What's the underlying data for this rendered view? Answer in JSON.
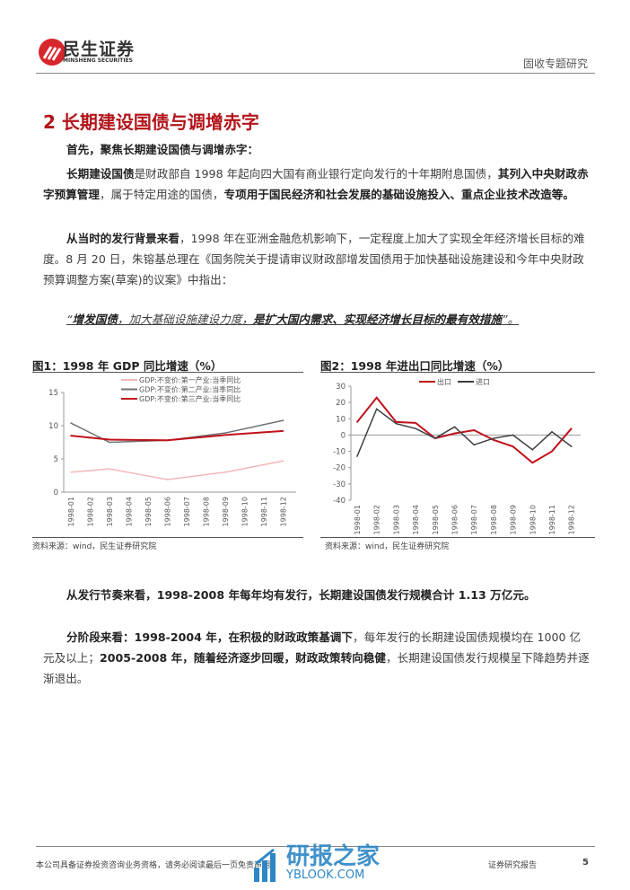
{
  "header": {
    "logo_cn": "民生证券",
    "logo_en": "MINSHENG SECURITIES",
    "category": "固收专题研究"
  },
  "section_title": "2 长期建设国债与调增赤字",
  "paragraphs": [
    {
      "segments": [
        {
          "text": "首先，聚焦长期建设国债与调增赤字：",
          "bold": true
        }
      ]
    },
    {
      "segments": [
        {
          "text": "长期建设国债",
          "bold": true
        },
        {
          "text": "是财政部自 1998 年起向四大国有商业银行定向发行的十年期附息国债，",
          "bold": false
        },
        {
          "text": "其列入中央财政赤字预算管理",
          "bold": true
        },
        {
          "text": "，属于特定用途的国债，",
          "bold": false
        },
        {
          "text": "专项用于国民经济和社会发展的基础设施投入、重点企业技术改造等。",
          "bold": true
        }
      ]
    },
    {
      "segments": [
        {
          "text": "从当时的发行背景来看",
          "bold": true
        },
        {
          "text": "，1998 年在亚洲金融危机影响下，一定程度上加大了实现全年经济增长目标的难度。8 月 20 日，朱镕基总理在《国务院关于提请审议财政部增发国债用于加快基础设施建设和今年中央财政预算调整方案(草案)的议案》中指出：",
          "bold": false
        }
      ]
    },
    {
      "segments": [
        {
          "text": "“",
          "bold": false
        },
        {
          "text": "增发国债",
          "bold": true
        },
        {
          "text": "，加大基础设施建设力度，",
          "bold": false
        },
        {
          "text": "是扩大国内需求、实现经济增长目标的最有效措施",
          "bold": true
        },
        {
          "text": "”。",
          "bold": false
        }
      ],
      "quote": true
    },
    {
      "segments": [
        {
          "text": "从发行节奏来看，1998-2008 年每年均有发行，长期建设国债发行规模合计 1.13 万亿元。",
          "bold": true
        }
      ]
    },
    {
      "segments": [
        {
          "text": "分阶段来看：1998-2004 年，在积极的财政政策基调下",
          "bold": true
        },
        {
          "text": "，每年发行的长期建设国债规模均在 1000 亿元及以上；",
          "bold": false
        },
        {
          "text": "2005-2008 年，随着经济逐步回暖，财政政策转向稳健",
          "bold": true
        },
        {
          "text": "，长期建设国债发行规模呈下降趋势并逐渐退出。",
          "bold": false
        }
      ]
    }
  ],
  "chart_data": [
    {
      "type": "line",
      "title": "图1：1998 年 GDP 同比增速（%）",
      "source": "资料来源：wind，民生证券研究院",
      "categories": [
        "1998-01",
        "1998-02",
        "1998-03",
        "1998-04",
        "1998-05",
        "1998-06",
        "1998-07",
        "1998-08",
        "1998-09",
        "1998-10",
        "1998-11",
        "1998-12"
      ],
      "ylim": [
        0,
        15
      ],
      "yticks": [
        "0",
        "5",
        "10",
        "15"
      ],
      "legend": "top",
      "series": [
        {
          "name": "GDP:不变价:第一产业:当季同比",
          "color": "#f2b8b8",
          "values": [
            3.0,
            null,
            3.5,
            null,
            null,
            1.9,
            null,
            null,
            3.0,
            null,
            null,
            4.7
          ]
        },
        {
          "name": "GDP:不变价:第二产业:当季同比",
          "color": "#6d7378",
          "values": [
            10.4,
            null,
            7.5,
            null,
            null,
            7.8,
            null,
            null,
            8.9,
            null,
            null,
            10.8
          ]
        },
        {
          "name": "GDP:不变价:第三产业:当季同比",
          "color": "#c0111a",
          "values": [
            8.5,
            null,
            7.9,
            null,
            null,
            7.8,
            null,
            null,
            8.6,
            null,
            null,
            9.2
          ]
        }
      ]
    },
    {
      "type": "line",
      "title": "图2：1998 年进出口同比增速（%）",
      "source": "资料来源：wind，民生证券研究院",
      "categories": [
        "1998-01",
        "1998-02",
        "1998-03",
        "1998-04",
        "1998-05",
        "1998-06",
        "1998-07",
        "1998-08",
        "1998-09",
        "1998-10",
        "1998-11",
        "1998-12"
      ],
      "ylim": [
        -40,
        30
      ],
      "yticks": [
        "-40",
        "-30",
        "-20",
        "-10",
        "0",
        "10",
        "20",
        "30"
      ],
      "legend": "top",
      "series": [
        {
          "name": "出口",
          "color": "#c0111a",
          "values": [
            8,
            23,
            8,
            7.5,
            -2,
            1,
            3,
            -3,
            -7,
            -17,
            -10,
            4
          ]
        },
        {
          "name": "进口",
          "color": "#3a3f44",
          "values": [
            -13,
            16,
            7,
            4,
            -2,
            5,
            -6,
            -2,
            0,
            -9,
            2,
            -7
          ]
        }
      ]
    }
  ],
  "footer": {
    "disclaimer": "本公司具备证券投资咨询业务资格，请务必阅读最后一页免责声明",
    "report_type": "证券研究报告",
    "page": "5",
    "watermark_cn": "研报之家",
    "watermark_en": "YBLOOK.COM"
  }
}
